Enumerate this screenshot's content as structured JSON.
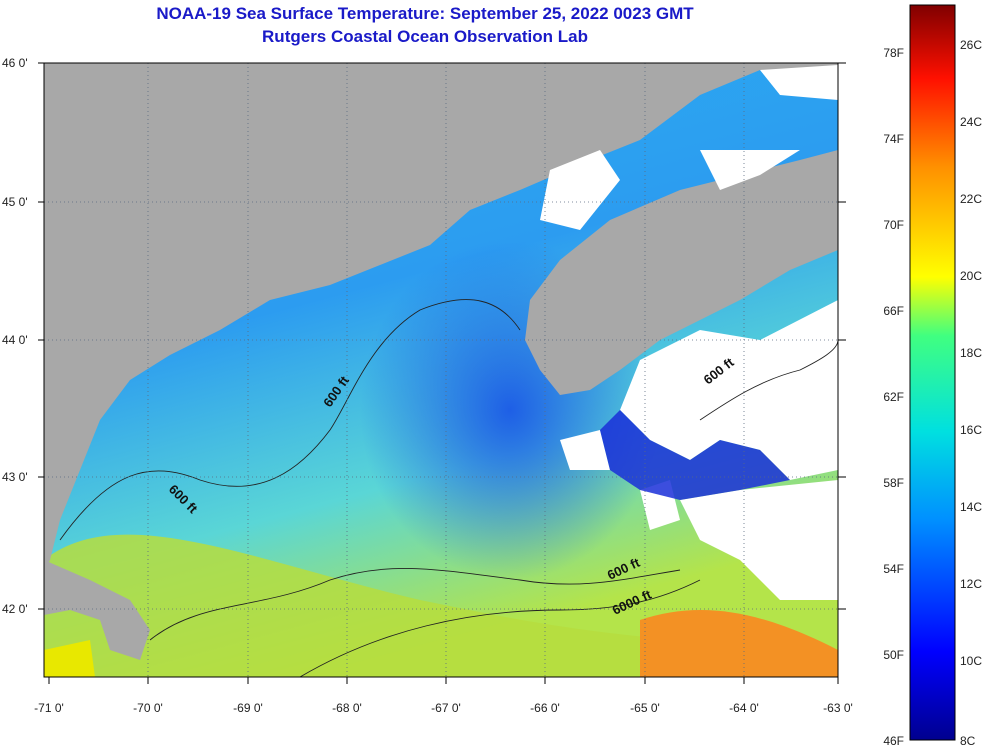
{
  "title": {
    "line1": "NOAA-19 Sea Surface Temperature:  September 25, 2022 0023 GMT",
    "line2": "Rutgers Coastal Ocean Observation Lab"
  },
  "axes": {
    "latitude_labels": [
      "46 0'",
      "45 0'",
      "44 0'",
      "43 0'",
      "42 0'"
    ],
    "longitude_labels": [
      "-71 0'",
      "-70 0'",
      "-69 0'",
      "-68 0'",
      "-67 0'",
      "-66 0'",
      "-65 0'",
      "-64 0'",
      "-63 0'"
    ]
  },
  "contours": {
    "labels": [
      "600 ft",
      "600 ft",
      "600 ft",
      "600 ft",
      "6000 ft"
    ]
  },
  "colorbar": {
    "fahrenheit_labels": [
      "78F",
      "74F",
      "70F",
      "66F",
      "62F",
      "58F",
      "54F",
      "50F",
      "46F"
    ],
    "celsius_labels": [
      "26C",
      "24C",
      "22C",
      "20C",
      "18C",
      "16C",
      "14C",
      "12C",
      "10C",
      "8C"
    ]
  },
  "colors": {
    "land": "#a8a8a8",
    "cloud": "#ffffff",
    "title": "#1a1ac8",
    "water_cold": "#1a2fd8",
    "water_mid": "#22a6f0",
    "water_warm": "#b8e63a",
    "water_hot": "#f08a1a"
  }
}
